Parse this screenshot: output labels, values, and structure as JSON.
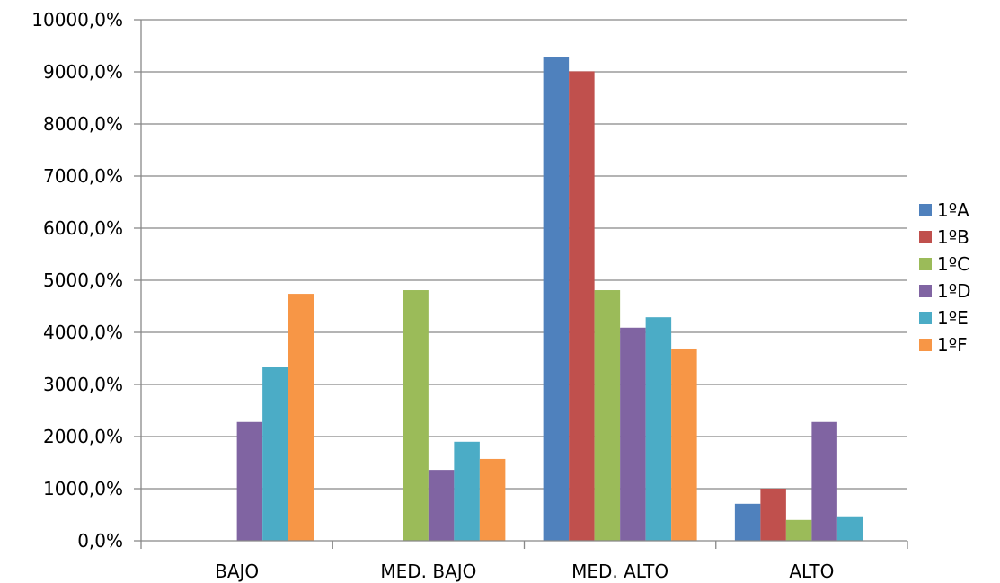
{
  "chart_data": {
    "type": "bar",
    "categories": [
      "BAJO",
      "MED. BAJO",
      "MED. ALTO",
      "ALTO"
    ],
    "series": [
      {
        "name": "1ºA",
        "color": "#4F81BD",
        "values": [
          0,
          0,
          9280,
          710
        ]
      },
      {
        "name": "1ºB",
        "color": "#C0504D",
        "values": [
          0,
          0,
          9010,
          1000
        ]
      },
      {
        "name": "1ºC",
        "color": "#9BBB59",
        "values": [
          0,
          4810,
          4810,
          400
        ]
      },
      {
        "name": "1ºD",
        "color": "#8064A2",
        "values": [
          2280,
          1360,
          4090,
          2280
        ]
      },
      {
        "name": "1ºE",
        "color": "#4BACC6",
        "values": [
          3330,
          1900,
          4290,
          470
        ]
      },
      {
        "name": "1ºF",
        "color": "#F79646",
        "values": [
          4740,
          1570,
          3690,
          0
        ]
      }
    ],
    "yticks": [
      "0,0%",
      "1000,0%",
      "2000,0%",
      "3000,0%",
      "4000,0%",
      "5000,0%",
      "6000,0%",
      "7000,0%",
      "8000,0%",
      "9000,0%",
      "10000,0%"
    ],
    "ylim": [
      0,
      10000
    ],
    "grid": true,
    "legend": "right"
  }
}
